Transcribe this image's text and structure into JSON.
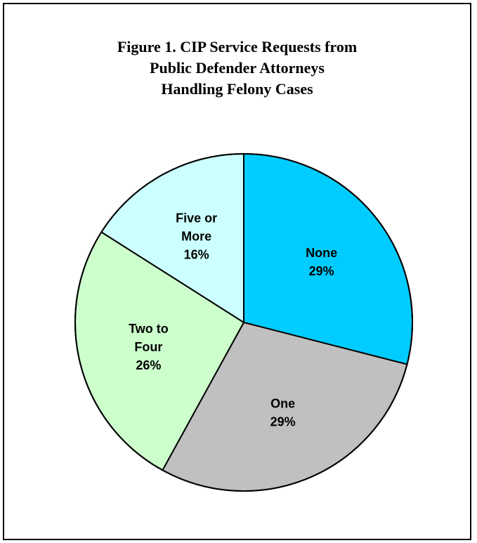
{
  "chart_data": {
    "type": "pie",
    "title_lines": [
      "Figure 1. CIP Service Requests from",
      "Public Defender Attorneys",
      "Handling Felony Cases"
    ],
    "slices": [
      {
        "label_lines": [
          "None"
        ],
        "value": 29,
        "value_label": "29%",
        "color": "#00CCFF"
      },
      {
        "label_lines": [
          "One"
        ],
        "value": 29,
        "value_label": "29%",
        "color": "#C0C0C0"
      },
      {
        "label_lines": [
          "Two to",
          "Four"
        ],
        "value": 26,
        "value_label": "26%",
        "color": "#CCFFCC"
      },
      {
        "label_lines": [
          "Five or",
          "More"
        ],
        "value": 16,
        "value_label": "16%",
        "color": "#CCFFFF"
      }
    ],
    "start": "12 o'clock",
    "direction": "clockwise"
  }
}
